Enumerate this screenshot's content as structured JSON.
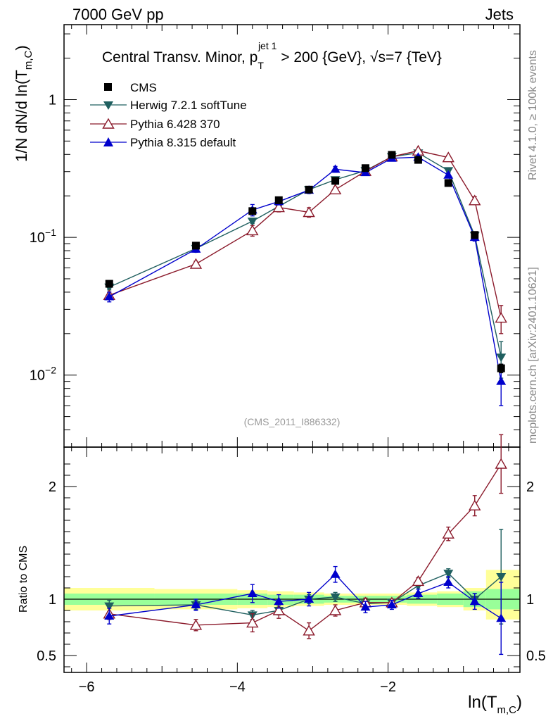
{
  "header": {
    "left": "7000 GeV pp",
    "right": "Jets"
  },
  "side_labels": {
    "rivet": "Rivet 4.1.0, ≥ 100k events",
    "mcplots": "mcplots.cern.ch [arXiv:2401.10621]"
  },
  "watermark": "(CMS_2011_I886332)",
  "chart_data": {
    "type": "scatter",
    "title": {
      "prefix": "Central Transv. Minor, p",
      "sub": "T",
      "sup": "jet 1",
      "suffix": " > 200 {GeV}, √s=7 {TeV}"
    },
    "xlabel": {
      "main": "ln(T",
      "sub": "m,C",
      "close": ")"
    },
    "ylabel": {
      "main": "1/N    dN/d ln(T",
      "sub": "m,C",
      "close": ")"
    },
    "ratio_ylabel": "Ratio to CMS",
    "xlim": [
      -6.3,
      -0.25
    ],
    "ylim": [
      0.003,
      3.5
    ],
    "ratio_ylim": [
      0.35,
      2.35
    ],
    "xticks": [
      {
        "v": -6,
        "label": "−6"
      },
      {
        "v": -4,
        "label": "−4"
      },
      {
        "v": -2,
        "label": "−2"
      }
    ],
    "yticks": [
      {
        "v": 0.01,
        "base": "10",
        "exp": "−2"
      },
      {
        "v": 0.1,
        "base": "10",
        "exp": "−1"
      },
      {
        "v": 1,
        "base": "1",
        "exp": ""
      }
    ],
    "ratio_yticks": [
      {
        "v": 0.5,
        "label": "0.5"
      },
      {
        "v": 1,
        "label": "1"
      },
      {
        "v": 2,
        "label": "2"
      }
    ],
    "bin_edges": [
      -6.3,
      -5.1,
      -4.0,
      -3.6,
      -3.25,
      -2.85,
      -2.5,
      -2.15,
      -1.75,
      -1.35,
      -1.0,
      -0.7,
      -0.25
    ],
    "band_inner": [
      [
        0.95,
        1.05
      ],
      [
        0.95,
        1.05
      ],
      [
        0.95,
        1.05
      ],
      [
        0.95,
        1.04
      ],
      [
        0.96,
        1.04
      ],
      [
        0.97,
        1.03
      ],
      [
        0.97,
        1.03
      ],
      [
        0.97,
        1.03
      ],
      [
        0.96,
        1.04
      ],
      [
        0.95,
        1.05
      ],
      [
        0.93,
        1.07
      ],
      [
        0.91,
        1.09
      ]
    ],
    "band_outer": [
      [
        0.9,
        1.1
      ],
      [
        0.91,
        1.09
      ],
      [
        0.92,
        1.08
      ],
      [
        0.93,
        1.07
      ],
      [
        0.94,
        1.06
      ],
      [
        0.95,
        1.05
      ],
      [
        0.95,
        1.05
      ],
      [
        0.95,
        1.05
      ],
      [
        0.94,
        1.06
      ],
      [
        0.93,
        1.07
      ],
      [
        0.9,
        1.1
      ],
      [
        0.82,
        1.26
      ]
    ],
    "x": [
      -5.7,
      -4.55,
      -3.8,
      -3.45,
      -3.05,
      -2.7,
      -2.3,
      -1.95,
      -1.6,
      -1.2,
      -0.85,
      -0.5
    ],
    "series": [
      {
        "name": "CMS",
        "color": "#000000",
        "marker": "square",
        "values": [
          0.046,
          0.087,
          0.155,
          0.186,
          0.222,
          0.257,
          0.318,
          0.397,
          0.365,
          0.248,
          0.104,
          0.0112
        ],
        "errors": [
          0.002,
          0.003,
          0.005,
          0.006,
          0.006,
          0.007,
          0.008,
          0.01,
          0.01,
          0.007,
          0.004,
          0.0008
        ],
        "ratio": [
          1,
          1,
          1,
          1,
          1,
          1,
          1,
          1,
          1,
          1,
          1,
          1
        ],
        "ratio_err": [
          0,
          0,
          0,
          0,
          0,
          0,
          0,
          0,
          0,
          0,
          0,
          0
        ]
      },
      {
        "name": "Herwig 7.2.1 softTune",
        "color": "#1f5f5f",
        "marker": "triangle-down",
        "values": [
          0.0435,
          0.083,
          0.131,
          0.168,
          0.222,
          0.262,
          0.305,
          0.385,
          0.41,
          0.305,
          0.103,
          0.0135
        ],
        "errors": [
          0.002,
          0.003,
          0.005,
          0.006,
          0.007,
          0.008,
          0.008,
          0.01,
          0.012,
          0.01,
          0.006,
          0.004
        ],
        "ratio": [
          0.94,
          0.95,
          0.86,
          0.9,
          1.0,
          1.02,
          0.96,
          0.97,
          1.12,
          1.23,
          1.0,
          1.2
        ],
        "ratio_err": [
          0.05,
          0.04,
          0.04,
          0.04,
          0.04,
          0.04,
          0.03,
          0.03,
          0.03,
          0.04,
          0.05,
          0.42
        ]
      },
      {
        "name": "Pythia 6.428 370",
        "color": "#8b1a2b",
        "marker": "triangle-open",
        "values": [
          0.038,
          0.064,
          0.112,
          0.165,
          0.152,
          0.222,
          0.302,
          0.385,
          0.425,
          0.38,
          0.185,
          0.026
        ],
        "errors": [
          0.002,
          0.003,
          0.01,
          0.012,
          0.012,
          0.01,
          0.01,
          0.012,
          0.012,
          0.012,
          0.012,
          0.006
        ],
        "ratio": [
          0.87,
          0.77,
          0.79,
          0.9,
          0.72,
          0.9,
          0.97,
          0.97,
          1.16,
          1.58,
          1.83,
          2.2
        ],
        "ratio_err": [
          0.05,
          0.05,
          0.08,
          0.07,
          0.07,
          0.05,
          0.04,
          0.03,
          0.03,
          0.06,
          0.09,
          0.26
        ]
      },
      {
        "name": "Pythia 8.315 default",
        "color": "#0000cc",
        "marker": "triangle-up",
        "values": [
          0.037,
          0.082,
          0.158,
          0.182,
          0.22,
          0.312,
          0.295,
          0.375,
          0.382,
          0.283,
          0.1,
          0.009
        ],
        "errors": [
          0.003,
          0.004,
          0.015,
          0.01,
          0.012,
          0.015,
          0.01,
          0.01,
          0.012,
          0.01,
          0.006,
          0.003
        ],
        "ratio": [
          0.85,
          0.95,
          1.05,
          0.98,
          1.0,
          1.22,
          0.93,
          0.95,
          1.05,
          1.15,
          0.98,
          0.83
        ],
        "ratio_err": [
          0.07,
          0.05,
          0.08,
          0.06,
          0.06,
          0.07,
          0.05,
          0.04,
          0.04,
          0.05,
          0.07,
          0.32
        ]
      }
    ]
  }
}
